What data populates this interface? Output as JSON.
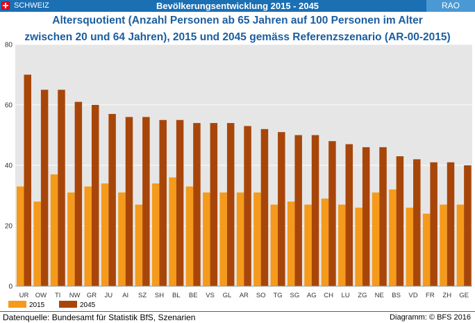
{
  "header": {
    "country": "SCHWEIZ",
    "banner_title": "Bevölkerungsentwicklung 2015 - 2045",
    "tag": "RAO",
    "bg_color": "#1b6fb3"
  },
  "chart_data": {
    "type": "bar",
    "title": "Altersquotient (Anzahl Personen ab 65 Jahren auf 100 Personen im Alter zwischen 20 und 64 Jahren), 2015 und 2045 gemäss Referenzszenario (AR-00-2015)",
    "title_lines": [
      "Altersquotient (Anzahl Personen ab 65 Jahren auf 100 Personen im Alter",
      "zwischen 20 und 64 Jahren), 2015 und 2045 gemäss Referenzszenario (AR-00-2015)"
    ],
    "categories": [
      "UR",
      "OW",
      "TI",
      "NW",
      "GR",
      "JU",
      "AI",
      "SZ",
      "SH",
      "BL",
      "BE",
      "VS",
      "GL",
      "AR",
      "SO",
      "TG",
      "SG",
      "AG",
      "CH",
      "LU",
      "ZG",
      "NE",
      "BS",
      "VD",
      "FR",
      "ZH",
      "GE"
    ],
    "series": [
      {
        "name": "2015",
        "color": "#f59a1b",
        "values": [
          33,
          28,
          37,
          31,
          33,
          34,
          31,
          27,
          34,
          36,
          33,
          31,
          31,
          31,
          31,
          27,
          28,
          27,
          29,
          27,
          26,
          31,
          32,
          26,
          24,
          27,
          27
        ]
      },
      {
        "name": "2045",
        "color": "#a8460a",
        "values": [
          70,
          65,
          65,
          61,
          60,
          57,
          56,
          56,
          55,
          55,
          54,
          54,
          54,
          53,
          52,
          51,
          50,
          50,
          48,
          47,
          46,
          46,
          43,
          42,
          41,
          41,
          40
        ]
      }
    ],
    "ylim": [
      0,
      80
    ],
    "yticks": [
      0,
      20,
      40,
      60,
      80
    ],
    "grid": true,
    "legend_position": "bottom-left",
    "plot_bg": "#e6e6e6",
    "xlabel": "",
    "ylabel": ""
  },
  "footer": {
    "source": "Datenquelle: Bundesamt für Statistik BfS, Szenarien",
    "credit": "Diagramm: © BFS 2016"
  }
}
